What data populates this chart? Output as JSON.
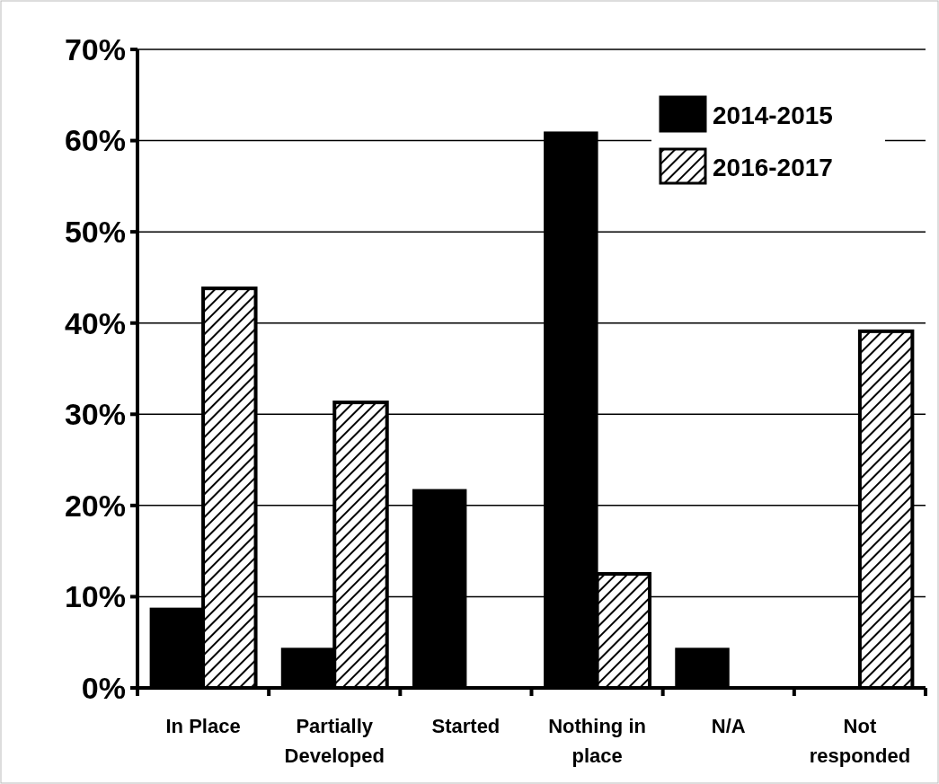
{
  "chart_data": {
    "type": "bar",
    "categories": [
      "In Place",
      "Partially Developed",
      "Started",
      "Nothing in place",
      "N/A",
      "Not responded"
    ],
    "series": [
      {
        "name": "2014-2015",
        "color": "#000000",
        "values": [
          8.7,
          4.3,
          21.7,
          60.9,
          4.3,
          0
        ]
      },
      {
        "name": "2016-2017",
        "color": "#000000",
        "values": [
          43.8,
          31.3,
          0,
          12.5,
          0,
          39.1
        ]
      }
    ],
    "ylim": [
      0,
      70
    ],
    "yticks": [
      {
        "value": 0,
        "label": "0%"
      },
      {
        "value": 10,
        "label": "10%"
      },
      {
        "value": 20,
        "label": "20%"
      },
      {
        "value": 30,
        "label": "30%"
      },
      {
        "value": 40,
        "label": "40%"
      },
      {
        "value": 50,
        "label": "50%"
      },
      {
        "value": 60,
        "label": "60%"
      },
      {
        "value": 70,
        "label": "70%"
      }
    ],
    "grid": "y",
    "legend": "top right"
  }
}
